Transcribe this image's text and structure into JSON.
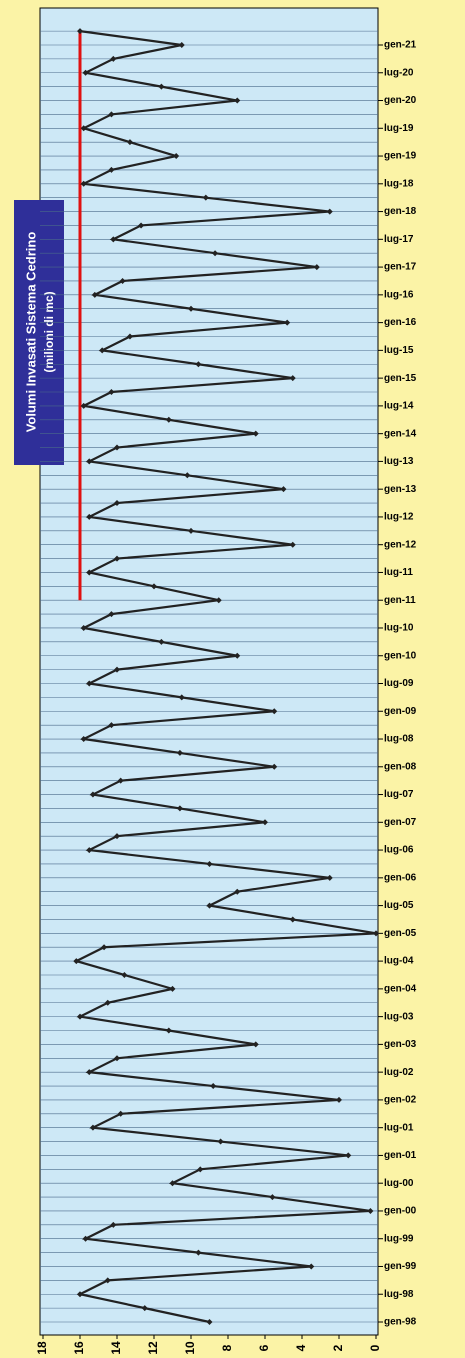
{
  "chart_data": {
    "type": "line",
    "title": "Volumi Invasati Sistema Cedrino",
    "subtitle": "(milioni di mc)",
    "categories": [
      "gen-98",
      null,
      "lug-98",
      null,
      "gen-99",
      null,
      "lug-99",
      null,
      "gen-00",
      null,
      "lug-00",
      null,
      "gen-01",
      null,
      "lug-01",
      null,
      "gen-02",
      null,
      "lug-02",
      null,
      "gen-03",
      null,
      "lug-03",
      null,
      "gen-04",
      null,
      "lug-04",
      null,
      "gen-05",
      null,
      "lug-05",
      null,
      "gen-06",
      null,
      "lug-06",
      null,
      "gen-07",
      null,
      "lug-07",
      null,
      "gen-08",
      null,
      "lug-08",
      null,
      "gen-09",
      null,
      "lug-09",
      null,
      "gen-10",
      null,
      "lug-10",
      null,
      "gen-11",
      null,
      "lug-11",
      null,
      "gen-12",
      null,
      "lug-12",
      null,
      "gen-13",
      null,
      "lug-13",
      null,
      "gen-14",
      null,
      "lug-14",
      null,
      "gen-15",
      null,
      "lug-15",
      null,
      "gen-16",
      null,
      "lug-16",
      null,
      "gen-17",
      null,
      "lug-17",
      null,
      "gen-18",
      null,
      "lug-18",
      null,
      "gen-19",
      null,
      "lug-19",
      null,
      "gen-20",
      null,
      "lug-20",
      null,
      "gen-21",
      null
    ],
    "values": [
      9,
      12.5,
      16,
      14.5,
      3.5,
      9.6,
      15.7,
      14.2,
      0.3,
      5.6,
      11,
      9.5,
      1.5,
      8.4,
      15.3,
      13.8,
      2,
      8.8,
      15.5,
      14,
      6.5,
      11.2,
      16,
      14.5,
      11,
      13.6,
      16.2,
      14.7,
      0,
      4.5,
      9,
      7.5,
      2.5,
      9,
      15.5,
      14,
      6,
      10.6,
      15.3,
      13.8,
      5.5,
      10.6,
      15.8,
      14.3,
      5.5,
      10.5,
      15.5,
      14,
      7.5,
      11.6,
      15.8,
      14.3,
      8.5,
      12,
      15.5,
      14,
      4.5,
      10,
      15.5,
      14,
      5,
      10.2,
      15.5,
      14,
      6.5,
      11.2,
      15.8,
      14.3,
      4.5,
      9.6,
      14.8,
      13.3,
      4.8,
      10,
      15.2,
      13.7,
      3.2,
      8.7,
      14.2,
      12.7,
      2.5,
      9.2,
      15.8,
      14.3,
      10.8,
      13.3,
      15.8,
      14.3,
      7.5,
      11.6,
      15.7,
      14.2,
      10.5,
      16
    ],
    "color": "#222222",
    "ref_line": {
      "value": 16,
      "start": "gen-11",
      "color": "#e01010"
    },
    "ylim": [
      0,
      18
    ],
    "yticks": [
      0,
      2,
      4,
      6,
      8,
      10,
      12,
      14,
      16,
      18
    ],
    "grid": true
  }
}
